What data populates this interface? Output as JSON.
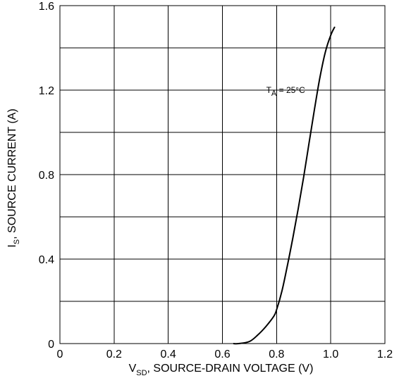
{
  "chart_data": {
    "type": "line",
    "title": "",
    "xlabel": {
      "main": "V",
      "sub": "SD",
      "rest": ", SOURCE-DRAIN VOLTAGE (V)"
    },
    "ylabel": {
      "main": "I",
      "sub": "S",
      "rest": ", SOURCE CURRENT (A)"
    },
    "xlim": [
      0,
      1.2
    ],
    "ylim": [
      0,
      1.6
    ],
    "x_gridlines": [
      0,
      0.2,
      0.4,
      0.6,
      0.8,
      1.0,
      1.2
    ],
    "y_gridlines": [
      0,
      0.2,
      0.4,
      0.6,
      0.8,
      1.0,
      1.2,
      1.4,
      1.6
    ],
    "x_ticks": [
      {
        "value": 0,
        "label": "0"
      },
      {
        "value": 0.2,
        "label": "0.2"
      },
      {
        "value": 0.4,
        "label": "0.4"
      },
      {
        "value": 0.6,
        "label": "0.6"
      },
      {
        "value": 0.8,
        "label": "0.8"
      },
      {
        "value": 1.0,
        "label": "1.0"
      },
      {
        "value": 1.2,
        "label": "1.2"
      }
    ],
    "y_ticks": [
      {
        "value": 0,
        "label": "0"
      },
      {
        "value": 0.4,
        "label": "0.4"
      },
      {
        "value": 0.8,
        "label": "0.8"
      },
      {
        "value": 1.2,
        "label": "1.2"
      },
      {
        "value": 1.6,
        "label": "1.6"
      }
    ],
    "grid": true,
    "series": [
      {
        "x": [
          0.64,
          0.66,
          0.7,
          0.73,
          0.76,
          0.79,
          0.8,
          0.82,
          0.84,
          0.86,
          0.88,
          0.9,
          0.92,
          0.94,
          0.96,
          0.98,
          1.0,
          1.015
        ],
        "y": [
          0.0,
          0.0,
          0.01,
          0.04,
          0.08,
          0.13,
          0.16,
          0.25,
          0.37,
          0.5,
          0.64,
          0.79,
          0.95,
          1.11,
          1.26,
          1.38,
          1.46,
          1.5
        ]
      }
    ],
    "annotations": [
      {
        "text_main": "T",
        "text_sub": "A",
        "text_rest": " = 25°C",
        "x": 0.91,
        "y": 1.2
      }
    ]
  }
}
